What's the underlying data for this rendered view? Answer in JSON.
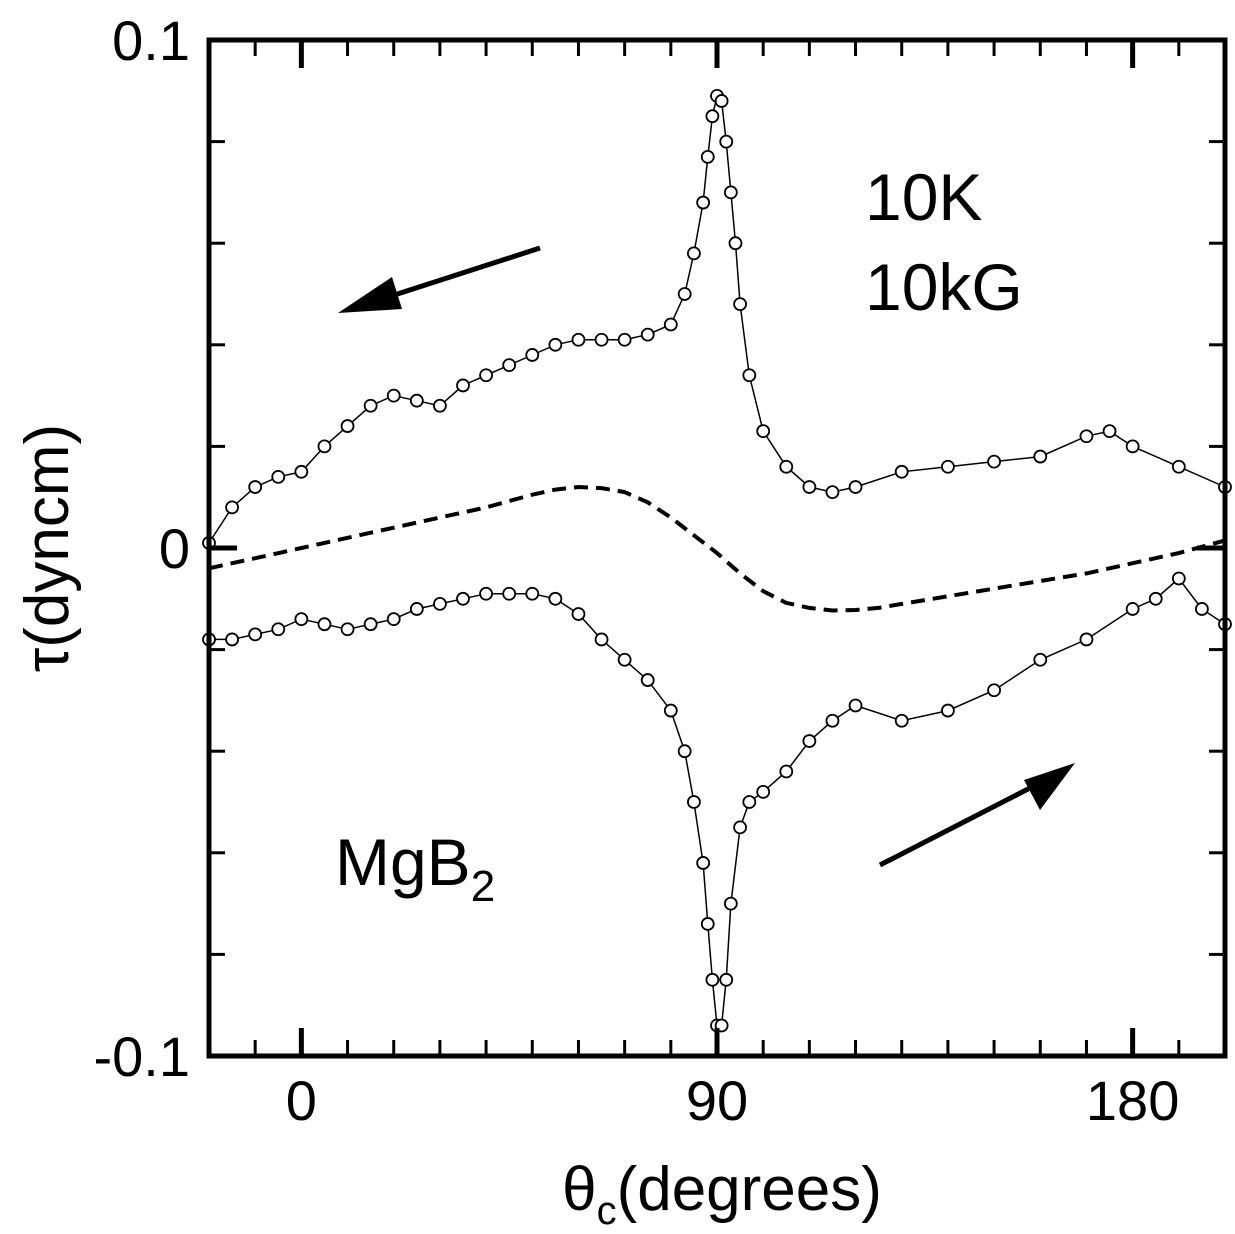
{
  "chart_data": {
    "type": "scatter",
    "xlabel": "θc(degrees)",
    "xlabel_main": "θ",
    "xlabel_sub": "c",
    "xlabel_rest": "(degrees)",
    "ylabel": "τ(dyncm)",
    "xlim": [
      -20,
      200
    ],
    "ylim": [
      -0.1,
      0.1
    ],
    "x_ticks": [
      0,
      90,
      180
    ],
    "x_tick_labels": [
      "0",
      "90",
      "180"
    ],
    "y_ticks": [
      -0.1,
      0,
      0.1
    ],
    "y_tick_labels": [
      "-0.1",
      "0",
      "0.1"
    ],
    "grid": false,
    "annotations": {
      "condition_line1": "10K",
      "condition_line2": "10kG",
      "sample_main": "MgB",
      "sample_sub": "2"
    },
    "arrows": [
      {
        "direction": "decreasing angle",
        "series": "upper branch"
      },
      {
        "direction": "increasing angle",
        "series": "lower branch"
      }
    ],
    "series": [
      {
        "style": "open circles with line",
        "x": [
          -20,
          -15,
          -10,
          -5,
          0,
          5,
          10,
          15,
          20,
          25,
          30,
          35,
          40,
          45,
          50,
          55,
          60,
          65,
          70,
          75,
          80,
          83,
          85,
          87,
          88,
          89,
          90,
          91,
          92,
          93,
          94,
          95,
          97,
          100,
          105,
          110,
          115,
          120,
          130,
          140,
          150,
          160,
          170,
          175,
          180,
          190,
          200
        ],
        "y": [
          0.001,
          0.008,
          0.012,
          0.014,
          0.015,
          0.02,
          0.024,
          0.028,
          0.03,
          0.029,
          0.028,
          0.032,
          0.034,
          0.036,
          0.038,
          0.04,
          0.041,
          0.041,
          0.041,
          0.042,
          0.044,
          0.05,
          0.058,
          0.068,
          0.077,
          0.085,
          0.089,
          0.088,
          0.08,
          0.07,
          0.06,
          0.048,
          0.034,
          0.023,
          0.016,
          0.012,
          0.011,
          0.012,
          0.015,
          0.016,
          0.017,
          0.018,
          0.022,
          0.023,
          0.02,
          0.016,
          0.012
        ]
      },
      {
        "style": "open circles with line",
        "x": [
          -20,
          -15,
          -10,
          -5,
          0,
          5,
          10,
          15,
          20,
          25,
          30,
          35,
          40,
          45,
          50,
          55,
          60,
          65,
          70,
          75,
          80,
          83,
          85,
          87,
          88,
          89,
          90,
          91,
          92,
          93,
          95,
          97,
          100,
          105,
          110,
          115,
          120,
          130,
          140,
          150,
          160,
          170,
          180,
          185,
          190,
          195,
          200
        ],
        "y": [
          -0.018,
          -0.018,
          -0.017,
          -0.016,
          -0.014,
          -0.015,
          -0.016,
          -0.015,
          -0.014,
          -0.012,
          -0.011,
          -0.01,
          -0.009,
          -0.009,
          -0.009,
          -0.01,
          -0.013,
          -0.018,
          -0.022,
          -0.026,
          -0.032,
          -0.04,
          -0.05,
          -0.062,
          -0.074,
          -0.085,
          -0.094,
          -0.094,
          -0.085,
          -0.07,
          -0.055,
          -0.05,
          -0.048,
          -0.044,
          -0.038,
          -0.034,
          -0.031,
          -0.034,
          -0.032,
          -0.028,
          -0.022,
          -0.018,
          -0.012,
          -0.01,
          -0.006,
          -0.012,
          -0.015
        ]
      },
      {
        "style": "dashed line",
        "x": [
          -20,
          -10,
          0,
          10,
          20,
          30,
          40,
          50,
          55,
          60,
          65,
          70,
          75,
          80,
          85,
          90,
          95,
          100,
          105,
          110,
          115,
          120,
          125,
          130,
          140,
          150,
          160,
          170,
          180,
          190,
          200
        ],
        "y": [
          -0.004,
          -0.002,
          0.0,
          0.002,
          0.004,
          0.006,
          0.008,
          0.0105,
          0.0115,
          0.012,
          0.0118,
          0.011,
          0.009,
          0.006,
          0.0025,
          -0.001,
          -0.005,
          -0.0085,
          -0.0108,
          -0.0118,
          -0.0123,
          -0.0122,
          -0.0118,
          -0.011,
          -0.0095,
          -0.008,
          -0.0065,
          -0.005,
          -0.003,
          -0.001,
          0.0015
        ]
      }
    ]
  }
}
